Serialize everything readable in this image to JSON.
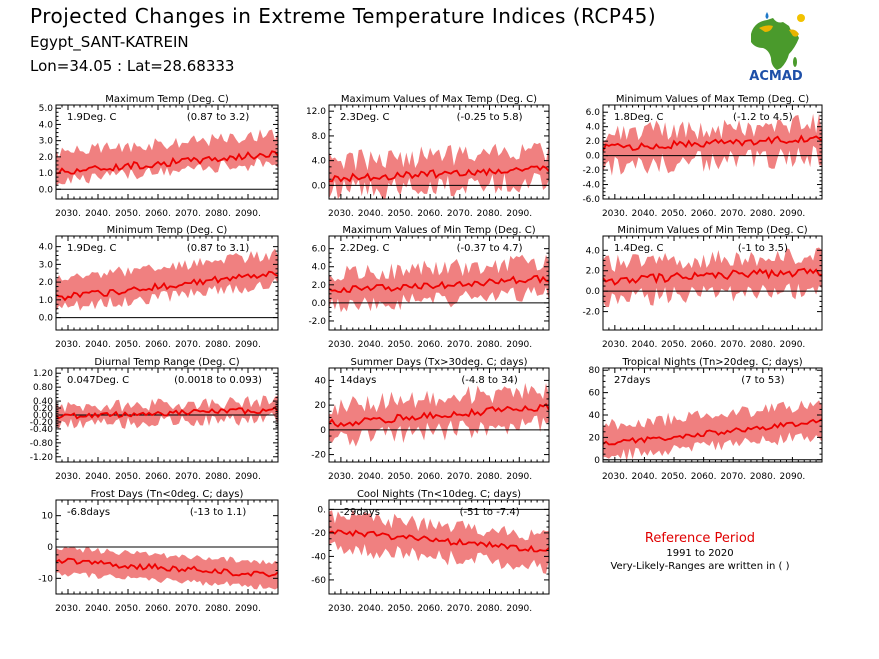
{
  "header": {
    "title": "Projected Changes in Extreme Temperature Indices (RCP45)",
    "station": "Egypt_SANT-KATREIN",
    "coords": "Lon=34.05 : Lat=28.68333"
  },
  "logo": {
    "text": "ACMAD",
    "icon": "africa-map-logo"
  },
  "reference": {
    "title": "Reference Period",
    "period": "1991 to 2020",
    "note": "Very-Likely-Ranges are written in ( )"
  },
  "colors": {
    "band": "#f08080",
    "line": "#ee0000",
    "zero": "#000000",
    "ref": "#e00000"
  },
  "chart_data": [
    {
      "type": "area",
      "title": "Maximum Temp (Deg. C)",
      "value": "1.9Deg. C",
      "range": "(0.87 to 3.2)",
      "x_ticks": [
        "2030.",
        "2040.",
        "2050.",
        "2060.",
        "2070.",
        "2080.",
        "2090."
      ],
      "xlim": [
        2026,
        2100
      ],
      "ylim": [
        -0.6,
        5.2
      ],
      "y_ticks": [
        0,
        1,
        2,
        3,
        4,
        5
      ],
      "y_labels": [
        "0.0",
        "1.0",
        "2.0",
        "3.0",
        "4.0",
        "5.0"
      ],
      "median_start": 1.0,
      "median_end": 2.2,
      "amp": 0.22,
      "lower_off": 0.55,
      "upper_off": 1.2,
      "noise": 0.4
    },
    {
      "type": "area",
      "title": "Maximum Values of Max Temp (Deg. C)",
      "value": "2.3Deg. C",
      "range": "(-0.25 to 5.8)",
      "x_ticks": [
        "2030.",
        "2040.",
        "2050.",
        "2060.",
        "2070.",
        "2080.",
        "2090."
      ],
      "xlim": [
        2026,
        2100
      ],
      "ylim": [
        -2.2,
        13
      ],
      "y_ticks": [
        0,
        4,
        8,
        12
      ],
      "y_labels": [
        "0.0",
        "4.0",
        "8.0",
        "12.0"
      ],
      "median_start": 1.0,
      "median_end": 2.7,
      "amp": 0.6,
      "lower_off": 2.0,
      "upper_off": 2.8,
      "noise": 1.8
    },
    {
      "type": "area",
      "title": "Minimum Values of Max Temp (Deg. C)",
      "value": "1.8Deg. C",
      "range": "(-1.2 to 4.5)",
      "x_ticks": [
        "2030.",
        "2040.",
        "2050.",
        "2060.",
        "2070.",
        "2080.",
        "2090."
      ],
      "xlim": [
        2026,
        2100
      ],
      "ylim": [
        -6,
        7
      ],
      "y_ticks": [
        -6,
        -4,
        -2,
        0,
        2,
        4,
        6
      ],
      "y_labels": [
        "-6.0",
        "-4.0",
        "-2.0",
        "0.0",
        "2.0",
        "4.0",
        "6.0"
      ],
      "median_start": 1.0,
      "median_end": 2.4,
      "amp": 0.5,
      "lower_off": 2.5,
      "upper_off": 2.0,
      "noise": 1.5
    },
    {
      "type": "area",
      "title": "Minimum Temp (Deg. C)",
      "value": "1.9Deg. C",
      "range": "(0.87 to 3.1)",
      "x_ticks": [
        "2030.",
        "2040.",
        "2050.",
        "2060.",
        "2070.",
        "2080.",
        "2090."
      ],
      "xlim": [
        2026,
        2100
      ],
      "ylim": [
        -0.7,
        4.6
      ],
      "y_ticks": [
        0,
        1,
        2,
        3,
        4
      ],
      "y_labels": [
        "0.0",
        "1.0",
        "2.0",
        "3.0",
        "4.0"
      ],
      "median_start": 1.0,
      "median_end": 2.5,
      "amp": 0.2,
      "lower_off": 0.6,
      "upper_off": 1.1,
      "noise": 0.35
    },
    {
      "type": "area",
      "title": "Maximum Values of Min Temp (Deg. C)",
      "value": "2.2Deg. C",
      "range": "(-0.37 to 4.7)",
      "x_ticks": [
        "2030.",
        "2040.",
        "2050.",
        "2060.",
        "2070.",
        "2080.",
        "2090."
      ],
      "xlim": [
        2026,
        2100
      ],
      "ylim": [
        -3,
        7.4
      ],
      "y_ticks": [
        -2,
        0,
        2,
        4,
        6
      ],
      "y_labels": [
        "-2.0",
        "0.0",
        "2.0",
        "4.0",
        "6.0"
      ],
      "median_start": 1.2,
      "median_end": 2.7,
      "amp": 0.4,
      "lower_off": 1.6,
      "upper_off": 1.8,
      "noise": 1.0
    },
    {
      "type": "area",
      "title": "Minimum Values of Min Temp (Deg. C)",
      "value": "1.4Deg. C",
      "range": "(-1 to 3.5)",
      "x_ticks": [
        "2030.",
        "2040.",
        "2050.",
        "2060.",
        "2070.",
        "2080.",
        "2090."
      ],
      "xlim": [
        2026,
        2100
      ],
      "ylim": [
        -3.8,
        5.4
      ],
      "y_ticks": [
        -2,
        0,
        2,
        4
      ],
      "y_labels": [
        "-2.0",
        "0.0",
        "2.0",
        "4.0"
      ],
      "median_start": 1.0,
      "median_end": 2.0,
      "amp": 0.45,
      "lower_off": 1.8,
      "upper_off": 1.6,
      "noise": 0.9
    },
    {
      "type": "area",
      "title": "Diurnal Temp Range (Deg. C)",
      "value": "0.047Deg. C",
      "range": "(0.0018 to 0.093)",
      "x_ticks": [
        "2030.",
        "2040.",
        "2050.",
        "2060.",
        "2070.",
        "2080.",
        "2090."
      ],
      "xlim": [
        2026,
        2100
      ],
      "ylim": [
        -1.35,
        1.35
      ],
      "y_ticks": [
        -1.2,
        -0.8,
        -0.4,
        -0.2,
        0,
        0.2,
        0.4,
        0.8,
        1.2
      ],
      "y_labels": [
        "-1.20",
        "-0.80",
        "-0.40",
        "-0.20",
        "0.00",
        "0.20",
        "0.40",
        "0.80",
        "1.20"
      ],
      "median_start": -0.05,
      "median_end": 0.15,
      "amp": 0.08,
      "lower_off": 0.25,
      "upper_off": 0.25,
      "noise": 0.18
    },
    {
      "type": "area",
      "title": "Summer Days (Tx>30deg. C; days)",
      "value": "14days",
      "range": "(-4.8 to 34)",
      "x_ticks": [
        "2030.",
        "2040.",
        "2050.",
        "2060.",
        "2070.",
        "2080.",
        "2090."
      ],
      "xlim": [
        2026,
        2100
      ],
      "ylim": [
        -26,
        50
      ],
      "y_ticks": [
        -20,
        0,
        20,
        40
      ],
      "y_labels": [
        "-20",
        "0",
        "20",
        "40"
      ],
      "median_start": 4,
      "median_end": 19,
      "amp": 3,
      "lower_off": 13,
      "upper_off": 14,
      "noise": 8
    },
    {
      "type": "area",
      "title": "Tropical Nights (Tn>20deg. C; days)",
      "value": "27days",
      "range": "(7 to 53)",
      "x_ticks": [
        "2030.",
        "2040.",
        "2050.",
        "2060.",
        "2070.",
        "2080.",
        "2090."
      ],
      "xlim": [
        2026,
        2100
      ],
      "ylim": [
        -2,
        82
      ],
      "y_ticks": [
        0,
        20,
        40,
        60,
        80
      ],
      "y_labels": [
        "0",
        "20",
        "40",
        "60",
        "80"
      ],
      "median_start": 13,
      "median_end": 34,
      "amp": 2.5,
      "lower_off": 12,
      "upper_off": 16,
      "noise": 6
    },
    {
      "type": "area",
      "title": "Frost Days (Tn<0deg. C; days)",
      "value": "-6.8days",
      "range": "(-13 to 1.1)",
      "x_ticks": [
        "2030.",
        "2040.",
        "2050.",
        "2060.",
        "2070.",
        "2080.",
        "2090."
      ],
      "xlim": [
        2026,
        2100
      ],
      "ylim": [
        -15,
        15
      ],
      "y_ticks": [
        -10,
        0,
        10
      ],
      "y_labels": [
        "-10",
        "0",
        "10"
      ],
      "median_start": -4,
      "median_end": -9,
      "amp": 1.0,
      "lower_off": 4,
      "upper_off": 4,
      "noise": 1.0
    },
    {
      "type": "area",
      "title": "Cool Nights (Tn<10deg. C; days)",
      "value": "-29days",
      "range": "(-51 to -7.4)",
      "x_ticks": [
        "2030.",
        "2040.",
        "2050.",
        "2060.",
        "2070.",
        "2080.",
        "2090."
      ],
      "xlim": [
        2026,
        2100
      ],
      "ylim": [
        -72,
        8
      ],
      "y_ticks": [
        -60,
        -40,
        -20,
        0
      ],
      "y_labels": [
        "-60",
        "-40",
        "-20",
        "0."
      ],
      "median_start": -17,
      "median_end": -35,
      "amp": 2.5,
      "lower_off": 14,
      "upper_off": 13,
      "noise": 7
    }
  ]
}
